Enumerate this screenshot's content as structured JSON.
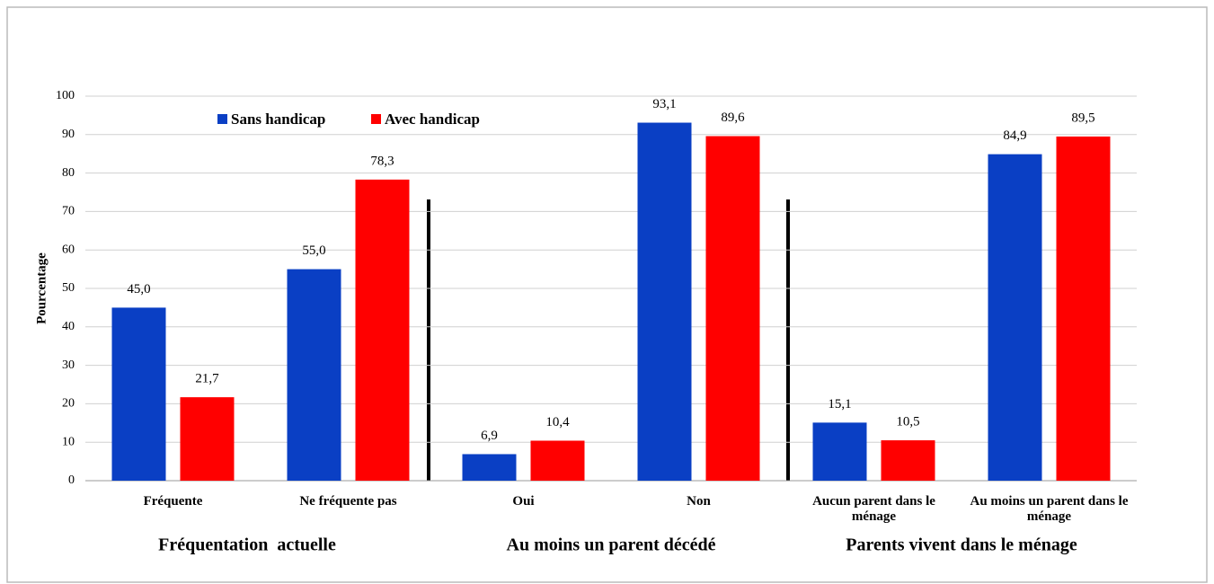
{
  "chart_data": {
    "type": "bar",
    "y_label": "Pourcentage",
    "categories": [
      "Fréquente",
      "Ne fréquente pas",
      "Oui",
      "Non",
      "Aucun parent dans le ménage",
      "Au moins un parent dans le ménage"
    ],
    "group_labels": [
      "Fréquentation  actuelle",
      "Au moins un parent décédé",
      "Parents vivent dans le ménage"
    ],
    "series": [
      {
        "name": "Sans handicap",
        "color": "#0a3fc4",
        "values": [
          45.0,
          55.0,
          6.9,
          93.1,
          15.1,
          84.9
        ],
        "value_labels": [
          "45,0",
          "55,0",
          "6,9",
          "93,1",
          "15,1",
          "84,9"
        ]
      },
      {
        "name": "Avec handicap",
        "color": "#ff0000",
        "values": [
          21.7,
          78.3,
          10.4,
          89.6,
          10.5,
          89.5
        ],
        "value_labels": [
          "21,7",
          "78,3",
          "10,4",
          "89,6",
          "10,5",
          "89,5"
        ]
      }
    ],
    "ylim": [
      0,
      100
    ],
    "yticks": [
      0,
      10,
      20,
      30,
      40,
      50,
      60,
      70,
      80,
      90,
      100
    ],
    "grid": true,
    "legend": "top"
  }
}
